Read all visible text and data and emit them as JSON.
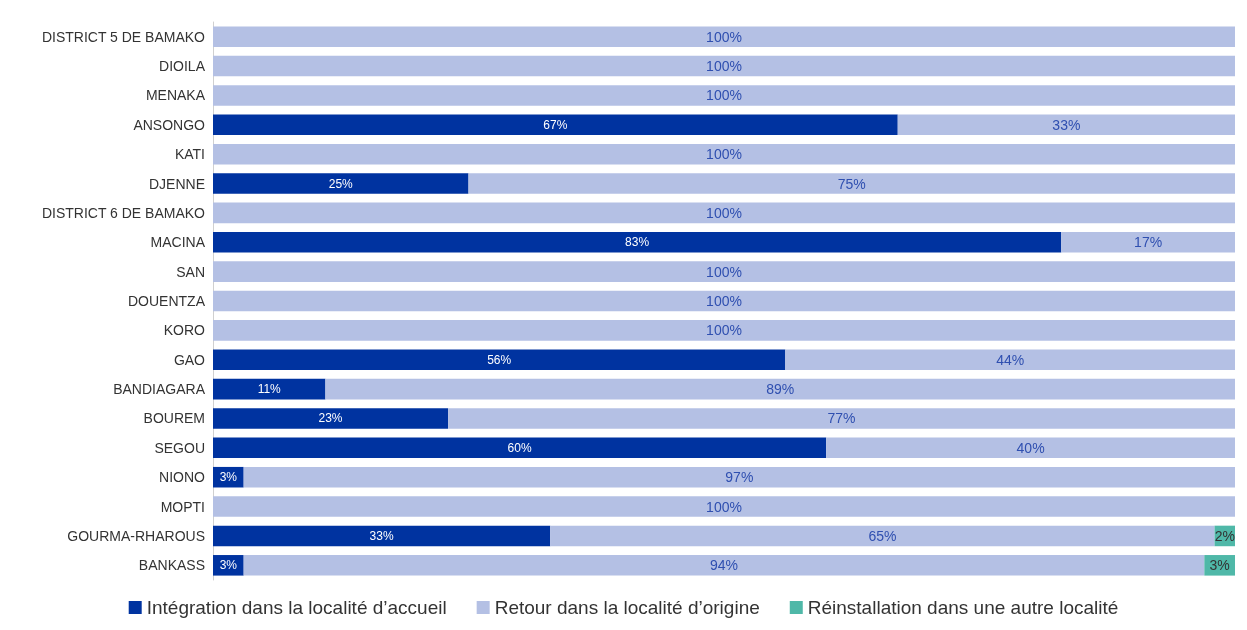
{
  "chart_data": {
    "type": "bar",
    "orientation": "horizontal",
    "stacked": true,
    "legend": "bottom",
    "categories": [
      "DISTRICT 5 DE BAMAKO",
      "DIOILA",
      "MENAKA",
      "ANSONGO",
      "KATI",
      "DJENNE",
      "DISTRICT 6 DE BAMAKO",
      "MACINA",
      "SAN",
      "DOUENTZA",
      "KORO",
      "GAO",
      "BANDIAGARA",
      "BOUREM",
      "SEGOU",
      "NIONO",
      "MOPTI",
      "GOURMA-RHAROUS",
      "BANKASS"
    ],
    "series": [
      {
        "name": "Intégration dans la localité d’accueil",
        "color": "#0033a0",
        "values": [
          0,
          0,
          0,
          67,
          0,
          25,
          0,
          83,
          0,
          0,
          0,
          56,
          11,
          23,
          60,
          3,
          0,
          33,
          3
        ],
        "value_labels": [
          null,
          null,
          null,
          "67%",
          null,
          "25%",
          null,
          "83%",
          null,
          null,
          null,
          "56%",
          "11%",
          "23%",
          "60%",
          "3%",
          null,
          "33%",
          "3%"
        ]
      },
      {
        "name": "Retour dans la localité d’origine",
        "color": "#b4c0e4",
        "values": [
          100,
          100,
          100,
          33,
          100,
          75,
          100,
          17,
          100,
          100,
          100,
          44,
          89,
          77,
          40,
          97,
          100,
          65,
          94
        ],
        "value_labels": [
          "100%",
          "100%",
          "100%",
          "33%",
          "100%",
          "75%",
          "100%",
          "17%",
          "100%",
          "100%",
          "100%",
          "44%",
          "89%",
          "77%",
          "40%",
          "97%",
          "100%",
          "65%",
          "94%"
        ]
      },
      {
        "name": "Réinstallation dans une autre localité",
        "color": "#4fb8a8",
        "values": [
          0,
          0,
          0,
          0,
          0,
          0,
          0,
          0,
          0,
          0,
          0,
          0,
          0,
          0,
          0,
          0,
          0,
          2,
          3
        ],
        "value_labels": [
          null,
          null,
          null,
          null,
          null,
          null,
          null,
          null,
          null,
          null,
          null,
          null,
          null,
          null,
          null,
          null,
          null,
          "2%",
          "3%"
        ]
      }
    ]
  }
}
